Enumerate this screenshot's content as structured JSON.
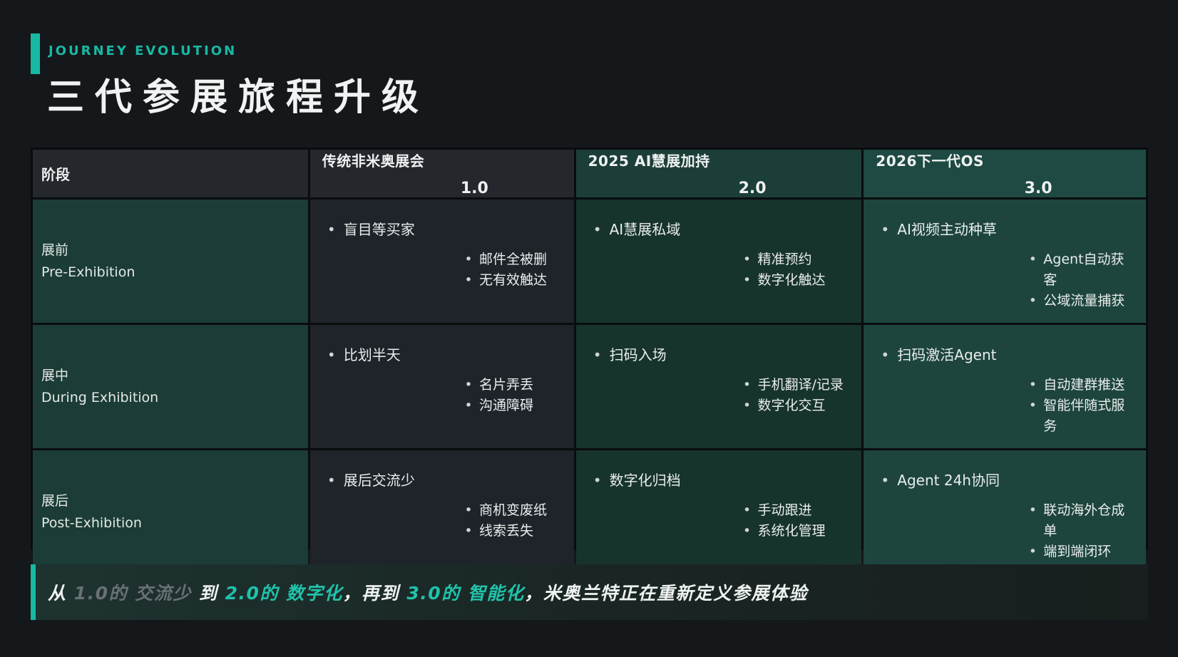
{
  "colors": {
    "accent": "#18b9a3",
    "page-bg": "#15181b",
    "grid-line": "#0a0c0e",
    "head-dark": "#24282d",
    "head-teal": "#1c3e39",
    "head-teal-light": "#1e4a43",
    "label-teal": "#1c3d37",
    "cell-dark": "#1f242a",
    "cell-teal-dark": "#17332e",
    "cell-teal-light": "#1d453e",
    "text-primary": "#eef1f0",
    "footer-muted": "#697076"
  },
  "header": {
    "eyebrow": "JOURNEY EVOLUTION",
    "title": "三代参展旅程升级"
  },
  "table": {
    "stage_column_header": "阶段",
    "columns": [
      {
        "title": "传统非米奥展会",
        "version": "1.0"
      },
      {
        "title": "2025 AI慧展加持",
        "version": "2.0"
      },
      {
        "title": "2026下一代OS",
        "version": "3.0"
      }
    ],
    "rows": [
      {
        "stage_cn": "展前",
        "stage_en": "Pre-Exhibition",
        "cells": [
          {
            "main": "盲目等买家",
            "subs": [
              "邮件全被删",
              "无有效触达"
            ]
          },
          {
            "main": "AI慧展私域",
            "subs": [
              "精准预约",
              "数字化触达"
            ]
          },
          {
            "main": "AI视频主动种草",
            "subs": [
              "Agent自动获客",
              "公域流量捕获"
            ]
          }
        ]
      },
      {
        "stage_cn": "展中",
        "stage_en": "During Exhibition",
        "cells": [
          {
            "main": "比划半天",
            "subs": [
              "名片弄丢",
              "沟通障碍"
            ]
          },
          {
            "main": "扫码入场",
            "subs": [
              "手机翻译/记录",
              "数字化交互"
            ]
          },
          {
            "main": "扫码激活Agent",
            "subs": [
              "自动建群推送",
              "智能伴随式服务"
            ]
          }
        ]
      },
      {
        "stage_cn": "展后",
        "stage_en": "Post-Exhibition",
        "cells": [
          {
            "main": "展后交流少",
            "subs": [
              "商机变废纸",
              "线索丢失"
            ]
          },
          {
            "main": "数字化归档",
            "subs": [
              "手动跟进",
              "系统化管理"
            ]
          },
          {
            "main": "Agent 24h协同",
            "subs": [
              "联动海外仓成单",
              "端到端闭环"
            ]
          }
        ]
      }
    ]
  },
  "footer": {
    "segments": [
      {
        "text": "从 ",
        "style": "white"
      },
      {
        "text": "1.0的 交流少",
        "style": "muted"
      },
      {
        "text": " 到 ",
        "style": "white"
      },
      {
        "text": "2.0的 数字化",
        "style": "accent"
      },
      {
        "text": "，再到 ",
        "style": "white"
      },
      {
        "text": "3.0的 智能化",
        "style": "accent"
      },
      {
        "text": "，米奥兰特正在重新定义参展体验",
        "style": "white"
      }
    ]
  }
}
